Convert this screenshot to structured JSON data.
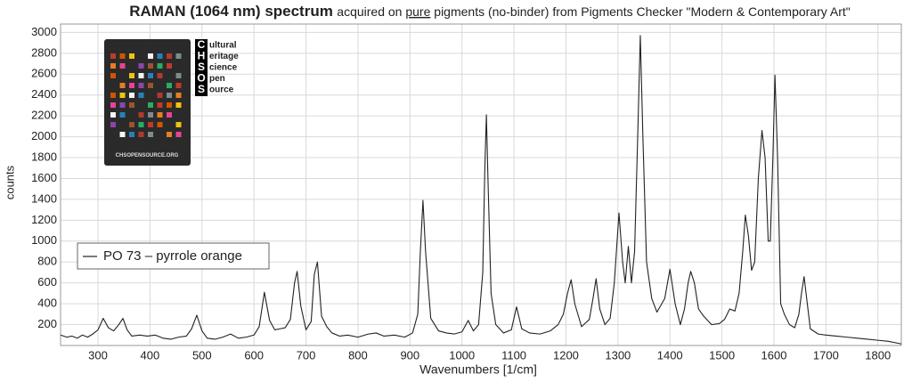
{
  "chart_data": {
    "type": "line",
    "title": "RAMAN (1064 nm) spectrum",
    "subtitle_parts": [
      "acquired on ",
      "pure",
      " pigments (no-binder) from Pigments Checker \"Modern & Contemporary Art\""
    ],
    "x_label": "Wavenumbers [1/cm]",
    "y_label": "counts",
    "x": [
      228,
      240,
      250,
      260,
      270,
      280,
      290,
      300,
      310,
      320,
      330,
      340,
      348,
      356,
      365,
      380,
      395,
      410,
      425,
      440,
      455,
      470,
      480,
      490,
      500,
      510,
      525,
      540,
      555,
      570,
      585,
      600,
      610,
      620,
      630,
      640,
      650,
      660,
      670,
      678,
      683,
      690,
      700,
      710,
      716,
      722,
      730,
      740,
      750,
      765,
      780,
      800,
      820,
      835,
      850,
      870,
      890,
      905,
      915,
      920,
      925,
      930,
      940,
      955,
      970,
      985,
      1000,
      1012,
      1022,
      1032,
      1040,
      1044,
      1047,
      1050,
      1056,
      1065,
      1080,
      1095,
      1105,
      1115,
      1130,
      1150,
      1170,
      1185,
      1195,
      1203,
      1210,
      1217,
      1230,
      1245,
      1252,
      1258,
      1265,
      1275,
      1285,
      1293,
      1302,
      1309,
      1314,
      1320,
      1326,
      1332,
      1338,
      1343,
      1348,
      1355,
      1365,
      1375,
      1390,
      1400,
      1410,
      1420,
      1428,
      1435,
      1440,
      1447,
      1455,
      1465,
      1480,
      1495,
      1505,
      1515,
      1525,
      1533,
      1540,
      1545,
      1551,
      1557,
      1563,
      1570,
      1577,
      1583,
      1589,
      1593,
      1598,
      1602,
      1607,
      1613,
      1620,
      1630,
      1640,
      1648,
      1653,
      1658,
      1663,
      1670,
      1685,
      1700,
      1720,
      1740,
      1760,
      1780,
      1800,
      1820,
      1845
    ],
    "series": [
      {
        "name": "PO 73 – pyrrole orange",
        "color": "#222222",
        "values": [
          100,
          80,
          90,
          70,
          100,
          80,
          110,
          150,
          260,
          170,
          140,
          200,
          260,
          150,
          90,
          100,
          90,
          100,
          70,
          60,
          80,
          90,
          160,
          290,
          140,
          70,
          60,
          80,
          110,
          70,
          80,
          100,
          180,
          510,
          240,
          150,
          160,
          170,
          250,
          600,
          710,
          380,
          150,
          230,
          680,
          800,
          280,
          180,
          120,
          90,
          100,
          80,
          110,
          120,
          90,
          100,
          80,
          120,
          300,
          900,
          1390,
          900,
          260,
          140,
          120,
          110,
          130,
          240,
          140,
          200,
          700,
          1700,
          2210,
          1600,
          500,
          200,
          120,
          150,
          370,
          160,
          120,
          110,
          140,
          200,
          300,
          500,
          630,
          400,
          180,
          250,
          450,
          640,
          350,
          200,
          260,
          600,
          1270,
          800,
          600,
          950,
          600,
          900,
          2000,
          2970,
          2000,
          800,
          450,
          320,
          450,
          730,
          400,
          200,
          350,
          600,
          710,
          600,
          350,
          280,
          200,
          210,
          250,
          350,
          330,
          500,
          900,
          1250,
          1050,
          720,
          800,
          1600,
          2060,
          1800,
          1000,
          1000,
          1800,
          2590,
          1800,
          400,
          300,
          200,
          170,
          300,
          500,
          660,
          450,
          160,
          110,
          100,
          90,
          80,
          70,
          60,
          50,
          40,
          15
        ]
      }
    ],
    "xlim": [
      228,
      1845
    ],
    "ylim": [
      0,
      3080
    ],
    "xticks": [
      300,
      400,
      500,
      600,
      700,
      800,
      900,
      1000,
      1100,
      1200,
      1300,
      1400,
      1500,
      1600,
      1700,
      1800
    ],
    "yticks": [
      200,
      400,
      600,
      800,
      1000,
      1200,
      1400,
      1600,
      1800,
      2000,
      2200,
      2400,
      2600,
      2800,
      3000
    ],
    "grid": true,
    "legend": "left"
  },
  "logo": {
    "letters": [
      "C",
      "H",
      "S",
      "O",
      "S"
    ],
    "words": [
      "ultural",
      "eritage",
      "cience",
      "pen",
      "ource"
    ],
    "caption": "CHSOPENSOURCE.ORG"
  }
}
